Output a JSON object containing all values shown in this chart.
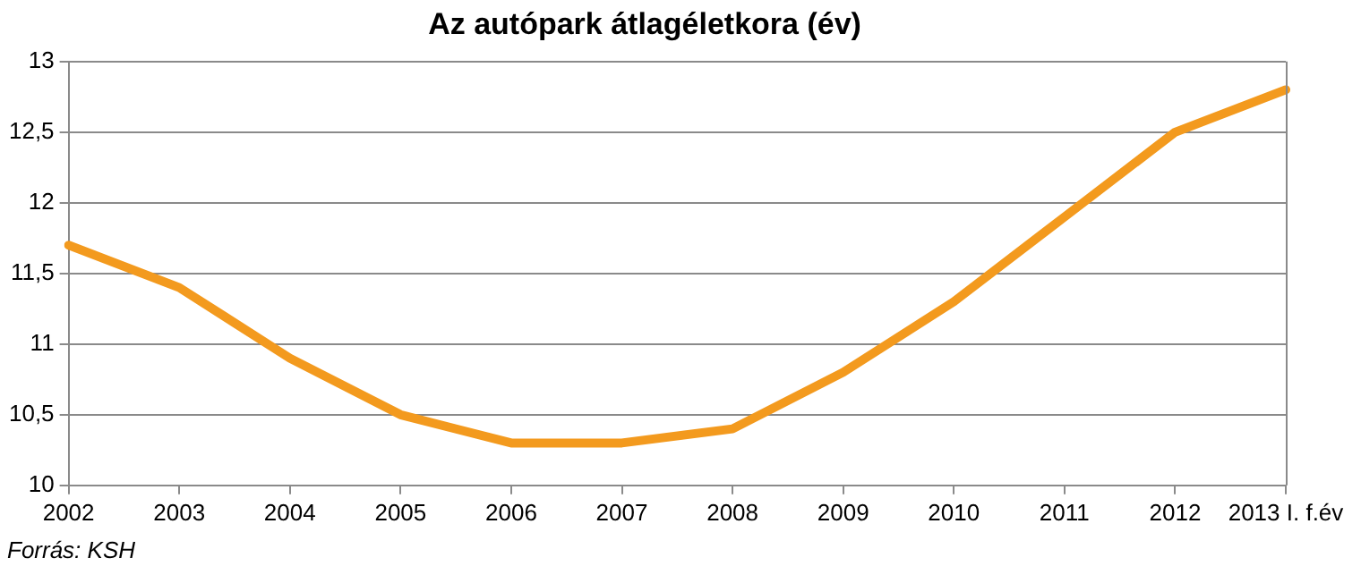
{
  "chart_data": {
    "type": "line",
    "title": "Az autópark átlagéletkora (év)",
    "categories": [
      "2002",
      "2003",
      "2004",
      "2005",
      "2006",
      "2007",
      "2008",
      "2009",
      "2010",
      "2011",
      "2012",
      "2013 I. f.év"
    ],
    "series": [
      {
        "color": "#f39a1e",
        "values": [
          11.7,
          11.4,
          10.9,
          10.5,
          10.3,
          10.3,
          10.4,
          10.8,
          11.3,
          11.9,
          12.5,
          12.8
        ]
      }
    ],
    "ylim": [
      10,
      13
    ],
    "yticks": [
      {
        "value": 10,
        "label": "10"
      },
      {
        "value": 10.5,
        "label": "10,5"
      },
      {
        "value": 11,
        "label": "11"
      },
      {
        "value": 11.5,
        "label": "11,5"
      },
      {
        "value": 12,
        "label": "12"
      },
      {
        "value": 12.5,
        "label": "12,5"
      },
      {
        "value": 13,
        "label": "13"
      }
    ],
    "grid": "y",
    "legend": false,
    "marker": "none",
    "line_style": "solid",
    "annotations": [
      "Forrás: KSH"
    ]
  }
}
